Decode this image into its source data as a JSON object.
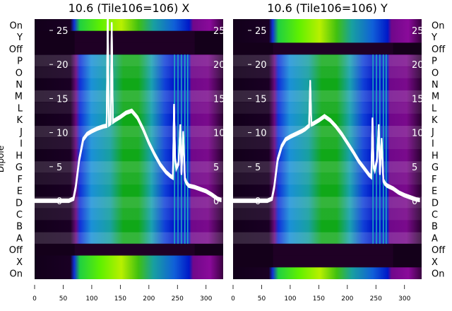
{
  "chart_data": [
    {
      "type": "heatmap",
      "title": "10.6 (Tile106=106) X",
      "ylabel": "Dipole",
      "row_labels": [
        "On",
        "Y",
        "Off",
        "P",
        "O",
        "N",
        "M",
        "L",
        "K",
        "J",
        "I",
        "H",
        "G",
        "F",
        "E",
        "D",
        "C",
        "B",
        "A",
        "Off",
        "X",
        "On"
      ],
      "row_kind": [
        "on",
        "dark",
        "dark",
        "dipole",
        "dipole",
        "dipole",
        "dipole",
        "dipole",
        "dipole",
        "dipole",
        "dipole",
        "dipole",
        "dipole",
        "dipole",
        "dipole",
        "dipole",
        "dipole",
        "dipole",
        "dipole",
        "dark",
        "on",
        "on"
      ],
      "xlim": [
        0,
        330
      ],
      "xticks": [
        0,
        50,
        100,
        150,
        200,
        250,
        300
      ],
      "overlay_ylim": [
        -1.5,
        26
      ],
      "overlay_yticks": [
        0,
        5,
        10,
        15,
        20,
        25
      ],
      "overlay_line": {
        "x": [
          0,
          60,
          68,
          72,
          78,
          85,
          92,
          100,
          110,
          120,
          126,
          128,
          130,
          133,
          135,
          137,
          140,
          150,
          160,
          170,
          180,
          190,
          200,
          210,
          220,
          230,
          238,
          242,
          244,
          246,
          248,
          252,
          255,
          257,
          260,
          263,
          266,
          270,
          280,
          290,
          300,
          310,
          320,
          327
        ],
        "y": [
          0,
          0,
          0.3,
          2,
          6,
          9,
          9.8,
          10.2,
          10.6,
          10.9,
          11,
          27,
          11.2,
          11.4,
          26,
          11.6,
          11.8,
          12.3,
          12.9,
          13.2,
          12.2,
          10.5,
          8.5,
          6.8,
          5.3,
          4.2,
          3.6,
          3.4,
          14,
          6,
          4.8,
          5.5,
          11,
          4,
          10,
          3.2,
          2.6,
          2.2,
          2,
          1.7,
          1.4,
          0.9,
          0.3,
          0.1
        ]
      }
    },
    {
      "type": "heatmap",
      "title": "10.6 (Tile106=106) Y",
      "ylabel": "Dipole",
      "row_labels": [
        "On",
        "Y",
        "Off",
        "P",
        "O",
        "N",
        "M",
        "L",
        "K",
        "J",
        "I",
        "H",
        "G",
        "F",
        "E",
        "D",
        "C",
        "B",
        "A",
        "Off",
        "X",
        "On"
      ],
      "row_kind": [
        "on",
        "on",
        "dark",
        "dipole",
        "dipole",
        "dipole",
        "dipole",
        "dipole",
        "dipole",
        "dipole",
        "dipole",
        "dipole",
        "dipole",
        "dipole",
        "dipole",
        "dipole",
        "dipole",
        "dipole",
        "dipole",
        "dark",
        "dark",
        "on"
      ],
      "xlim": [
        0,
        330
      ],
      "xticks": [
        0,
        50,
        100,
        150,
        200,
        250,
        300
      ],
      "overlay_ylim": [
        -1.5,
        26
      ],
      "overlay_yticks": [
        0,
        5,
        10,
        15,
        20,
        25
      ],
      "overlay_line": {
        "x": [
          0,
          60,
          68,
          72,
          78,
          85,
          92,
          100,
          110,
          120,
          126,
          130,
          133,
          135,
          137,
          140,
          150,
          160,
          170,
          180,
          190,
          200,
          210,
          220,
          230,
          238,
          242,
          244,
          246,
          248,
          252,
          255,
          257,
          260,
          263,
          266,
          270,
          280,
          290,
          300,
          310,
          320,
          327
        ],
        "y": [
          0,
          0,
          0.3,
          2,
          6,
          8,
          9,
          9.4,
          9.8,
          10.2,
          10.5,
          10.8,
          11,
          17.5,
          11.2,
          11.3,
          11.8,
          12.4,
          11.8,
          10.9,
          9.8,
          8.5,
          7.2,
          5.8,
          4.7,
          3.8,
          3.5,
          12,
          5,
          4.5,
          6,
          11,
          4,
          9,
          3,
          2.5,
          2.2,
          1.8,
          1.2,
          0.8,
          0.5,
          0.2,
          0.1
        ]
      }
    }
  ],
  "colors": {
    "line": "#ffffff",
    "dark": "#14001a",
    "purple": "#7a0a8c",
    "blue": "#0a28d0",
    "cyan": "#1a90d8",
    "green": "#10b010",
    "lime": "#b8f000"
  }
}
